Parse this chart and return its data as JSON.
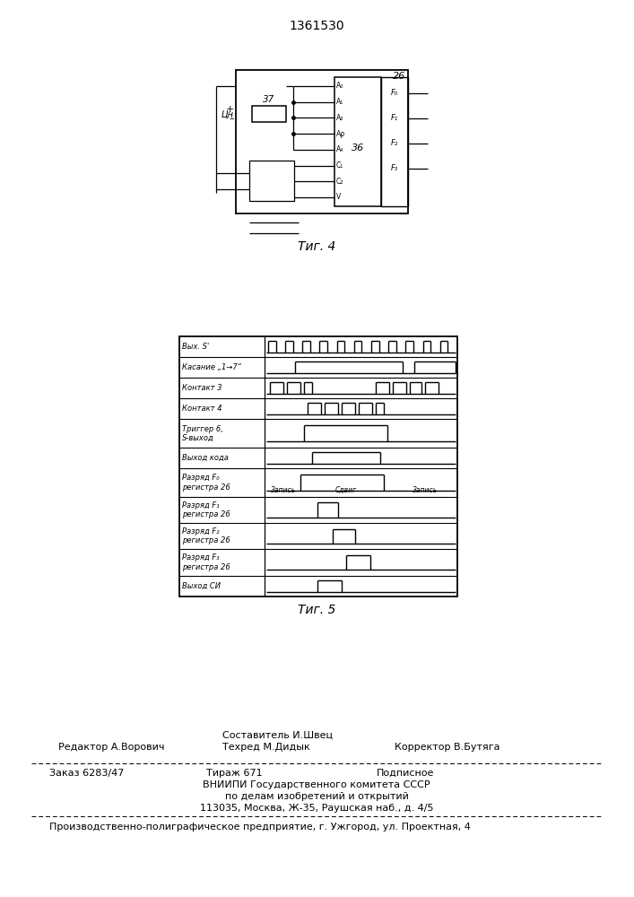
{
  "patent_number": "1361530",
  "fig4_label": "Τиг. 4",
  "fig5_label": "Τиг. 5",
  "timing_rows": [
    {
      "label": "Вых. S'",
      "type": "clock"
    },
    {
      "label": "Касание „1→7“",
      "type": "kasanie"
    },
    {
      "label": "Контакт 3",
      "type": "kontakt3"
    },
    {
      "label": "Контакт 4",
      "type": "kontakt4"
    },
    {
      "label": "Триггер 6,\nS-выход",
      "type": "trigger"
    },
    {
      "label": "Выход кода",
      "type": "vyhod_koda"
    },
    {
      "label": "Разряд F₀\nрегистра 26",
      "type": "f0"
    },
    {
      "label": "Разряд F₁\nрегистра 26",
      "type": "f1"
    },
    {
      "label": "Разряд F₂\nрегистра 26",
      "type": "f2"
    },
    {
      "label": "Разряд F₃\nрегистра 26",
      "type": "f3"
    },
    {
      "label": "Выход СИ",
      "type": "si"
    }
  ],
  "footer": {
    "editor": "Редактор А.Ворович",
    "composer": "Составитель И.Швец",
    "techred": "Техред М.Дидык",
    "corrector": "Корректор В.Бутяга",
    "order": "Заказ 6283/47",
    "tirazh": "Тираж 671",
    "podpisnoe": "Подписное",
    "vniip1": "ВНИИПИ Государственного комитета СССР",
    "vniip2": "по делам изобретений и открытий",
    "address": "113035, Москва, Ж-35, Раушская наб., д. 4/5",
    "plant": "Производственно-полиграфическое предприятие, г. Ужгород, ул. Проектная, 4"
  }
}
